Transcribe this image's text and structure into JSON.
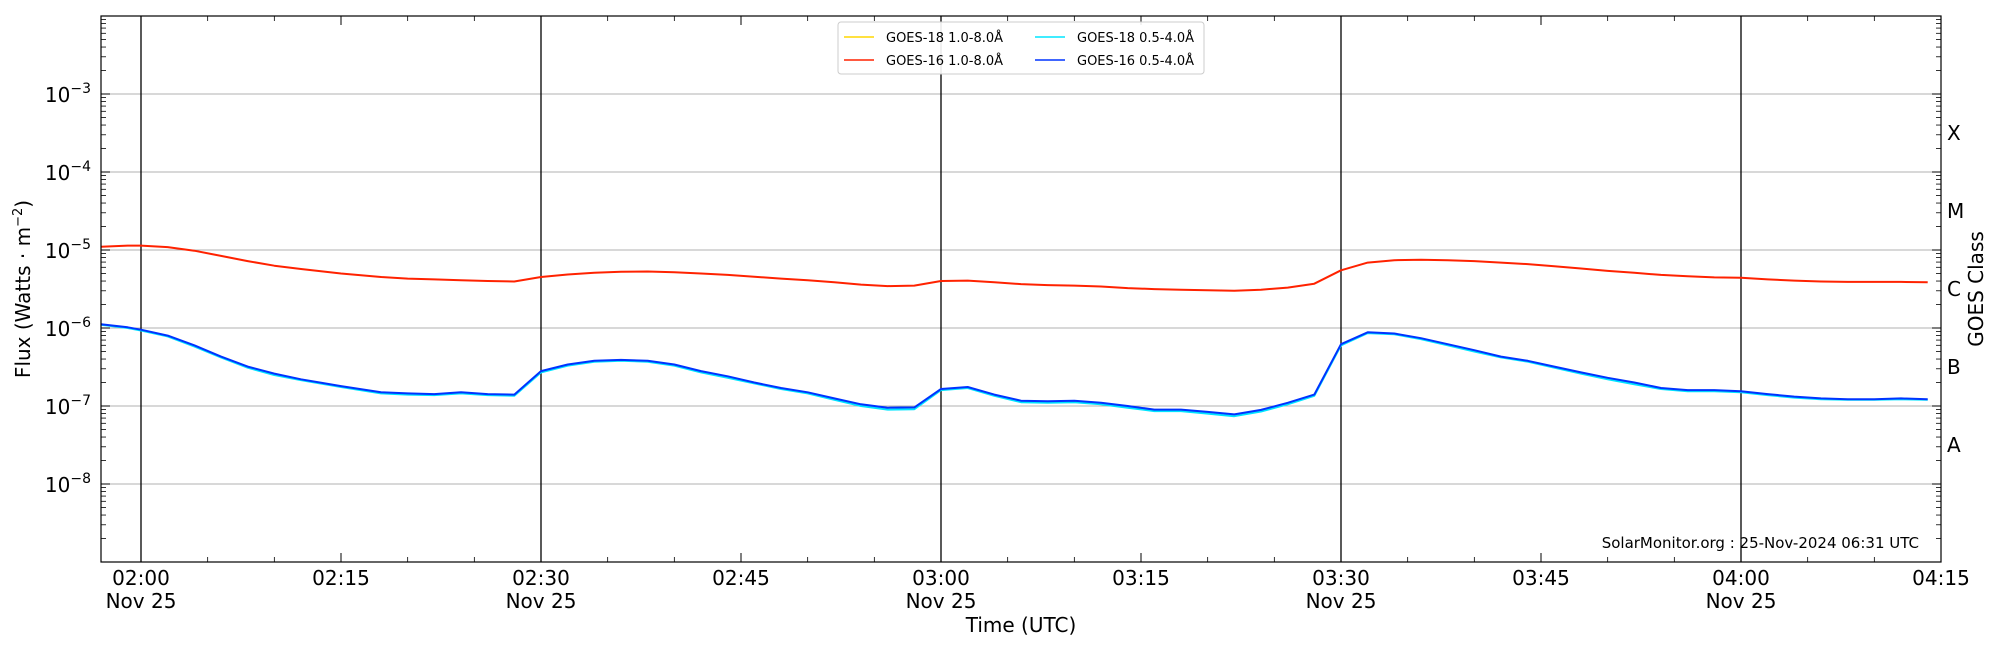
{
  "chart_data": {
    "type": "line",
    "title": "",
    "xlabel": "Time (UTC)",
    "ylabel_base": "Flux (Watts · m",
    "ylabel_exp": "−2",
    "ylabel_close": ")",
    "right_label": "GOES Class",
    "y_scale": "log",
    "ylim": [
      1e-09,
      0.01
    ],
    "xlim": [
      "01:57",
      "04:15"
    ],
    "grid": "horizontal",
    "legend_position": "top-center",
    "y_ticks": [
      {
        "base": "10",
        "exp": "−3",
        "value": -3
      },
      {
        "base": "10",
        "exp": "−4",
        "value": -4
      },
      {
        "base": "10",
        "exp": "−5",
        "value": -5
      },
      {
        "base": "10",
        "exp": "−6",
        "value": -6
      },
      {
        "base": "10",
        "exp": "−7",
        "value": -7
      },
      {
        "base": "10",
        "exp": "−8",
        "value": -8
      }
    ],
    "class_labels": [
      {
        "label": "X",
        "value": -3.5
      },
      {
        "label": "M",
        "value": -4.5
      },
      {
        "label": "C",
        "value": -5.5
      },
      {
        "label": "B",
        "value": -6.5
      },
      {
        "label": "A",
        "value": -7.5
      }
    ],
    "x_ticks": [
      {
        "time": "02:00",
        "date": "Nov 25"
      },
      {
        "time": "02:15",
        "date": ""
      },
      {
        "time": "02:30",
        "date": "Nov 25"
      },
      {
        "time": "02:45",
        "date": ""
      },
      {
        "time": "03:00",
        "date": "Nov 25"
      },
      {
        "time": "03:15",
        "date": ""
      },
      {
        "time": "03:30",
        "date": "Nov 25"
      },
      {
        "time": "03:45",
        "date": ""
      },
      {
        "time": "04:00",
        "date": "Nov 25"
      },
      {
        "time": "04:15",
        "date": ""
      }
    ],
    "vertical_lines": [
      "02:00",
      "02:30",
      "03:00",
      "03:30",
      "04:00"
    ],
    "annotation": "SolarMonitor.org : 25-Nov-2024 06:31 UTC",
    "legend": [
      {
        "name": "GOES-18 1.0-8.0Å",
        "color": "#ffd700"
      },
      {
        "name": "GOES-18 0.5-4.0Å",
        "color": "#00e5ff"
      },
      {
        "name": "GOES-16 1.0-8.0Å",
        "color": "#ff2200"
      },
      {
        "name": "GOES-16 0.5-4.0Å",
        "color": "#0033ff"
      }
    ],
    "series": [
      {
        "name": "GOES-16 1.0-8.0Å",
        "color": "#ff2200",
        "x": [
          "01:57",
          "01:59",
          "02:00",
          "02:02",
          "02:04",
          "02:06",
          "02:08",
          "02:10",
          "02:12",
          "02:15",
          "02:18",
          "02:20",
          "02:22",
          "02:24",
          "02:26",
          "02:28",
          "02:30",
          "02:32",
          "02:34",
          "02:36",
          "02:38",
          "02:40",
          "02:42",
          "02:44",
          "02:46",
          "02:48",
          "02:50",
          "02:52",
          "02:54",
          "02:56",
          "02:58",
          "03:00",
          "03:02",
          "03:04",
          "03:06",
          "03:08",
          "03:10",
          "03:12",
          "03:14",
          "03:16",
          "03:18",
          "03:20",
          "03:22",
          "03:24",
          "03:26",
          "03:28",
          "03:30",
          "03:32",
          "03:34",
          "03:36",
          "03:38",
          "03:40",
          "03:42",
          "03:44",
          "03:46",
          "03:48",
          "03:50",
          "03:52",
          "03:54",
          "03:56",
          "03:58",
          "04:00",
          "04:02",
          "04:04",
          "04:06",
          "04:08",
          "04:10",
          "04:12",
          "04:14"
        ],
        "values": [
          1.1e-05,
          1.14e-05,
          1.14e-05,
          1.09e-05,
          9.8e-06,
          8.4e-06,
          7.2e-06,
          6.3e-06,
          5.7e-06,
          5e-06,
          4.5e-06,
          4.3e-06,
          4.2e-06,
          4.1e-06,
          4e-06,
          3.95e-06,
          4.5e-06,
          4.85e-06,
          5.1e-06,
          5.25e-06,
          5.3e-06,
          5.2e-06,
          5e-06,
          4.8e-06,
          4.55e-06,
          4.3e-06,
          4.1e-06,
          3.85e-06,
          3.6e-06,
          3.45e-06,
          3.5e-06,
          4e-06,
          4.05e-06,
          3.85e-06,
          3.65e-06,
          3.55e-06,
          3.5e-06,
          3.4e-06,
          3.25e-06,
          3.15e-06,
          3.1e-06,
          3.05e-06,
          3e-06,
          3.1e-06,
          3.3e-06,
          3.7e-06,
          5.5e-06,
          6.9e-06,
          7.4e-06,
          7.5e-06,
          7.4e-06,
          7.2e-06,
          6.9e-06,
          6.6e-06,
          6.2e-06,
          5.8e-06,
          5.4e-06,
          5.1e-06,
          4.8e-06,
          4.6e-06,
          4.45e-06,
          4.4e-06,
          4.2e-06,
          4.05e-06,
          3.95e-06,
          3.9e-06,
          3.9e-06,
          3.9e-06,
          3.85e-06
        ]
      },
      {
        "name": "GOES-18 0.5-4.0Å",
        "color": "#00e5ff",
        "x": [
          "01:57",
          "01:59",
          "02:00",
          "02:02",
          "02:04",
          "02:06",
          "02:08",
          "02:10",
          "02:12",
          "02:15",
          "02:18",
          "02:20",
          "02:22",
          "02:24",
          "02:26",
          "02:28",
          "02:30",
          "02:32",
          "02:34",
          "02:36",
          "02:38",
          "02:40",
          "02:42",
          "02:44",
          "02:46",
          "02:48",
          "02:50",
          "02:52",
          "02:54",
          "02:56",
          "02:58",
          "03:00",
          "03:02",
          "03:04",
          "03:06",
          "03:08",
          "03:10",
          "03:12",
          "03:14",
          "03:16",
          "03:18",
          "03:20",
          "03:22",
          "03:24",
          "03:26",
          "03:28",
          "03:30",
          "03:32",
          "03:34",
          "03:36",
          "03:38",
          "03:40",
          "03:42",
          "03:44",
          "03:46",
          "03:48",
          "03:50",
          "03:52",
          "03:54",
          "03:56",
          "03:58",
          "04:00",
          "04:02",
          "04:04",
          "04:06",
          "04:08",
          "04:10",
          "04:12",
          "04:14"
        ],
        "values": [
          1.1e-06,
          1e-06,
          9.3e-07,
          7.8e-07,
          5.8e-07,
          4.2e-07,
          3.1e-07,
          2.5e-07,
          2.15e-07,
          1.75e-07,
          1.45e-07,
          1.4e-07,
          1.38e-07,
          1.45e-07,
          1.38e-07,
          1.35e-07,
          2.7e-07,
          3.3e-07,
          3.7e-07,
          3.8e-07,
          3.7e-07,
          3.3e-07,
          2.7e-07,
          2.3e-07,
          1.95e-07,
          1.65e-07,
          1.45e-07,
          1.2e-07,
          1e-07,
          9e-08,
          9.1e-08,
          1.6e-07,
          1.7e-07,
          1.35e-07,
          1.12e-07,
          1.1e-07,
          1.12e-07,
          1.05e-07,
          9.5e-08,
          8.6e-08,
          8.6e-08,
          8e-08,
          7.4e-08,
          8.5e-08,
          1.05e-07,
          1.35e-07,
          6e-07,
          8.6e-07,
          8.3e-07,
          7.2e-07,
          6e-07,
          5e-07,
          4.2e-07,
          3.7e-07,
          3.1e-07,
          2.6e-07,
          2.2e-07,
          1.9e-07,
          1.65e-07,
          1.55e-07,
          1.55e-07,
          1.5e-07,
          1.38e-07,
          1.28e-07,
          1.22e-07,
          1.2e-07,
          1.2e-07,
          1.22e-07,
          1.2e-07
        ]
      },
      {
        "name": "GOES-16 0.5-4.0Å",
        "color": "#0033ff",
        "x": [
          "01:57",
          "01:59",
          "02:00",
          "02:02",
          "02:04",
          "02:06",
          "02:08",
          "02:10",
          "02:12",
          "02:15",
          "02:18",
          "02:20",
          "02:22",
          "02:24",
          "02:26",
          "02:28",
          "02:30",
          "02:32",
          "02:34",
          "02:36",
          "02:38",
          "02:40",
          "02:42",
          "02:44",
          "02:46",
          "02:48",
          "02:50",
          "02:52",
          "02:54",
          "02:56",
          "02:58",
          "03:00",
          "03:02",
          "03:04",
          "03:06",
          "03:08",
          "03:10",
          "03:12",
          "03:14",
          "03:16",
          "03:18",
          "03:20",
          "03:22",
          "03:24",
          "03:26",
          "03:28",
          "03:30",
          "03:32",
          "03:34",
          "03:36",
          "03:38",
          "03:40",
          "03:42",
          "03:44",
          "03:46",
          "03:48",
          "03:50",
          "03:52",
          "03:54",
          "03:56",
          "03:58",
          "04:00",
          "04:02",
          "04:04",
          "04:06",
          "04:08",
          "04:10",
          "04:12",
          "04:14"
        ],
        "values": [
          1.12e-06,
          1.02e-06,
          9.5e-07,
          8e-07,
          6e-07,
          4.3e-07,
          3.2e-07,
          2.6e-07,
          2.2e-07,
          1.8e-07,
          1.5e-07,
          1.45e-07,
          1.42e-07,
          1.5e-07,
          1.42e-07,
          1.4e-07,
          2.8e-07,
          3.4e-07,
          3.8e-07,
          3.9e-07,
          3.8e-07,
          3.4e-07,
          2.8e-07,
          2.4e-07,
          2e-07,
          1.7e-07,
          1.5e-07,
          1.25e-07,
          1.05e-07,
          9.5e-08,
          9.6e-08,
          1.65e-07,
          1.75e-07,
          1.4e-07,
          1.17e-07,
          1.15e-07,
          1.17e-07,
          1.1e-07,
          1e-07,
          9e-08,
          9e-08,
          8.4e-08,
          7.8e-08,
          8.9e-08,
          1.1e-07,
          1.4e-07,
          6.2e-07,
          8.8e-07,
          8.5e-07,
          7.4e-07,
          6.2e-07,
          5.2e-07,
          4.3e-07,
          3.8e-07,
          3.2e-07,
          2.7e-07,
          2.3e-07,
          2e-07,
          1.7e-07,
          1.6e-07,
          1.6e-07,
          1.55e-07,
          1.42e-07,
          1.32e-07,
          1.25e-07,
          1.22e-07,
          1.22e-07,
          1.25e-07,
          1.22e-07
        ]
      }
    ]
  }
}
